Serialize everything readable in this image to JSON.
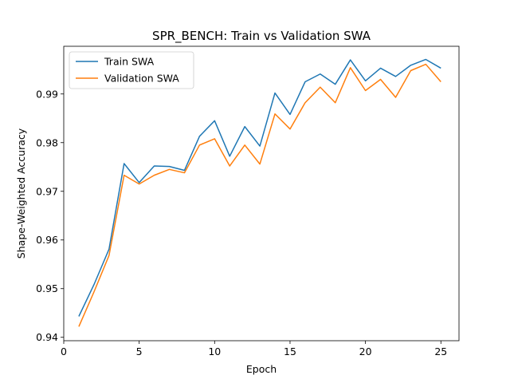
{
  "chart_data": {
    "type": "line",
    "title": "SPR_BENCH: Train vs Validation SWA",
    "xlabel": "Epoch",
    "ylabel": "Shape-Weighted Accuracy",
    "xlim": [
      0,
      26.2
    ],
    "ylim": [
      0.9393,
      0.9998
    ],
    "x_ticks": [
      0,
      5,
      10,
      15,
      20,
      25
    ],
    "y_ticks": [
      0.94,
      0.95,
      0.96,
      0.97,
      0.98,
      0.99
    ],
    "legend_position": "top-left",
    "grid": false,
    "x": [
      1,
      2,
      3,
      4,
      5,
      6,
      7,
      8,
      9,
      10,
      11,
      12,
      13,
      14,
      15,
      16,
      17,
      18,
      19,
      20,
      21,
      22,
      23,
      24,
      25
    ],
    "series": [
      {
        "name": "Train SWA",
        "color": "#1f77b4",
        "values": [
          0.9443,
          0.9508,
          0.9581,
          0.9757,
          0.9718,
          0.9752,
          0.9751,
          0.9743,
          0.9813,
          0.9845,
          0.9772,
          0.9833,
          0.9793,
          0.9902,
          0.9858,
          0.9925,
          0.9941,
          0.992,
          0.997,
          0.9927,
          0.9953,
          0.9936,
          0.9959,
          0.9971,
          0.9953
        ]
      },
      {
        "name": "Validation SWA",
        "color": "#ff7f0e",
        "values": [
          0.9422,
          0.9493,
          0.9568,
          0.9733,
          0.9715,
          0.9733,
          0.9745,
          0.9738,
          0.9795,
          0.9808,
          0.9752,
          0.9795,
          0.9756,
          0.9859,
          0.9828,
          0.9882,
          0.9914,
          0.9882,
          0.9954,
          0.9907,
          0.993,
          0.9893,
          0.9948,
          0.9961,
          0.9925
        ]
      }
    ]
  }
}
